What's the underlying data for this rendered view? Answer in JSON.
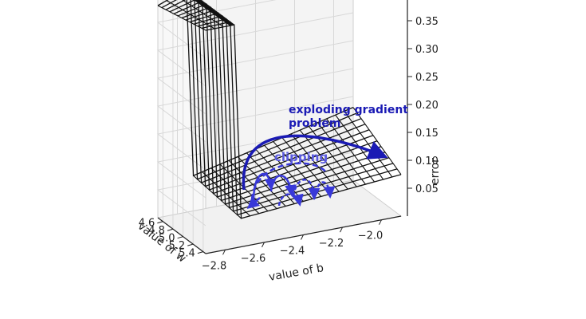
{
  "chart_data": {
    "type": "surface3d",
    "title": "",
    "x_label": "value of b",
    "y_label": "value of w",
    "z_label": "error",
    "x_ticks": [
      "−2.8",
      "−2.6",
      "−2.4",
      "−2.2",
      "−2.0"
    ],
    "y_ticks": [
      "4.6",
      "4.8",
      "5.0",
      "5.2",
      "5.4"
    ],
    "z_ticks": [
      "0.05",
      "0.10",
      "0.15",
      "0.20",
      "0.25",
      "0.30",
      "0.35"
    ],
    "x_range": [
      -2.9,
      -1.9
    ],
    "y_range": [
      4.5,
      5.45
    ],
    "z_range": [
      0.0,
      0.4
    ],
    "surface": {
      "description_values": "error surface with a steep cliff near b = -2.75; plateau error about 0.40 on the cliff side, valley error about 0.05-0.12 on the other side",
      "cliff_b": -2.75,
      "high_error": 0.4,
      "low_error_min": 0.05,
      "low_error_max": 0.12
    },
    "annotations": [
      {
        "text": "exploding gradient",
        "color": "#1a1ab4"
      },
      {
        "text": "problem",
        "color": "#1a1ab4"
      },
      {
        "text": "clipping",
        "color": "#5a5ae0"
      }
    ],
    "colors": {
      "axis": "#222222",
      "grid": "#d8d8d8",
      "surface_line": "#111111",
      "exploding_arrow": "#1a1ab4",
      "clipping_arrow": "#3838d8"
    }
  }
}
